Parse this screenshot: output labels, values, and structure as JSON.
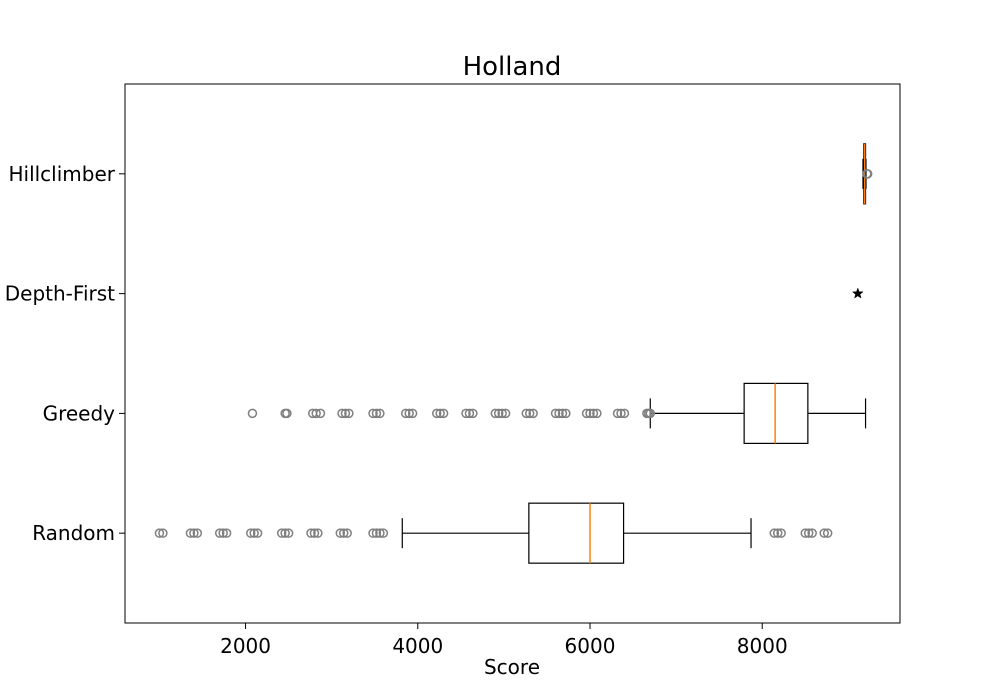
{
  "chart_data": {
    "type": "boxplot",
    "orientation": "horizontal",
    "title": "Holland",
    "xlabel": "Score",
    "ylabel": "",
    "xlim": [
      600,
      9600
    ],
    "xticks": [
      2000,
      4000,
      6000,
      8000
    ],
    "xtick_labels": [
      "2000",
      "4000",
      "6000",
      "8000"
    ],
    "grid": false,
    "colors": {
      "box": "#000000",
      "median": "#ff7f0e",
      "flier": "#808080",
      "star": "#000000"
    },
    "categories": [
      "Random",
      "Greedy",
      "Depth-First",
      "Hillclimber"
    ],
    "boxes": [
      {
        "name": "Random",
        "whisker_low": 3820,
        "q1": 5290,
        "median": 6000,
        "q3": 6390,
        "whisker_high": 7870,
        "fliers": [
          1000,
          1040,
          1360,
          1400,
          1440,
          1700,
          1740,
          1780,
          2060,
          2100,
          2140,
          2420,
          2460,
          2500,
          2760,
          2800,
          2840,
          3100,
          3140,
          3180,
          3480,
          3520,
          3560,
          3600,
          8140,
          8180,
          8220,
          8500,
          8540,
          8580,
          8720,
          8760
        ]
      },
      {
        "name": "Greedy",
        "whisker_low": 6700,
        "q1": 7790,
        "median": 8150,
        "q3": 8530,
        "whisker_high": 9200,
        "fliers": [
          2080,
          2460,
          2480,
          2780,
          2820,
          2870,
          3120,
          3160,
          3200,
          3480,
          3520,
          3560,
          3860,
          3900,
          3940,
          4220,
          4260,
          4300,
          4560,
          4600,
          4640,
          4900,
          4940,
          4980,
          5020,
          5260,
          5300,
          5340,
          5600,
          5640,
          5680,
          5720,
          5960,
          6000,
          6040,
          6080,
          6320,
          6360,
          6400,
          6660,
          6680,
          6700
        ]
      },
      {
        "name": "Depth-First",
        "marker": "star",
        "value": 9110
      },
      {
        "name": "Hillclimber",
        "whisker_low": 9170,
        "q1": 9180,
        "median": 9190,
        "q3": 9200,
        "whisker_high": 9205,
        "fliers": [
          9215,
          9225
        ]
      }
    ]
  }
}
